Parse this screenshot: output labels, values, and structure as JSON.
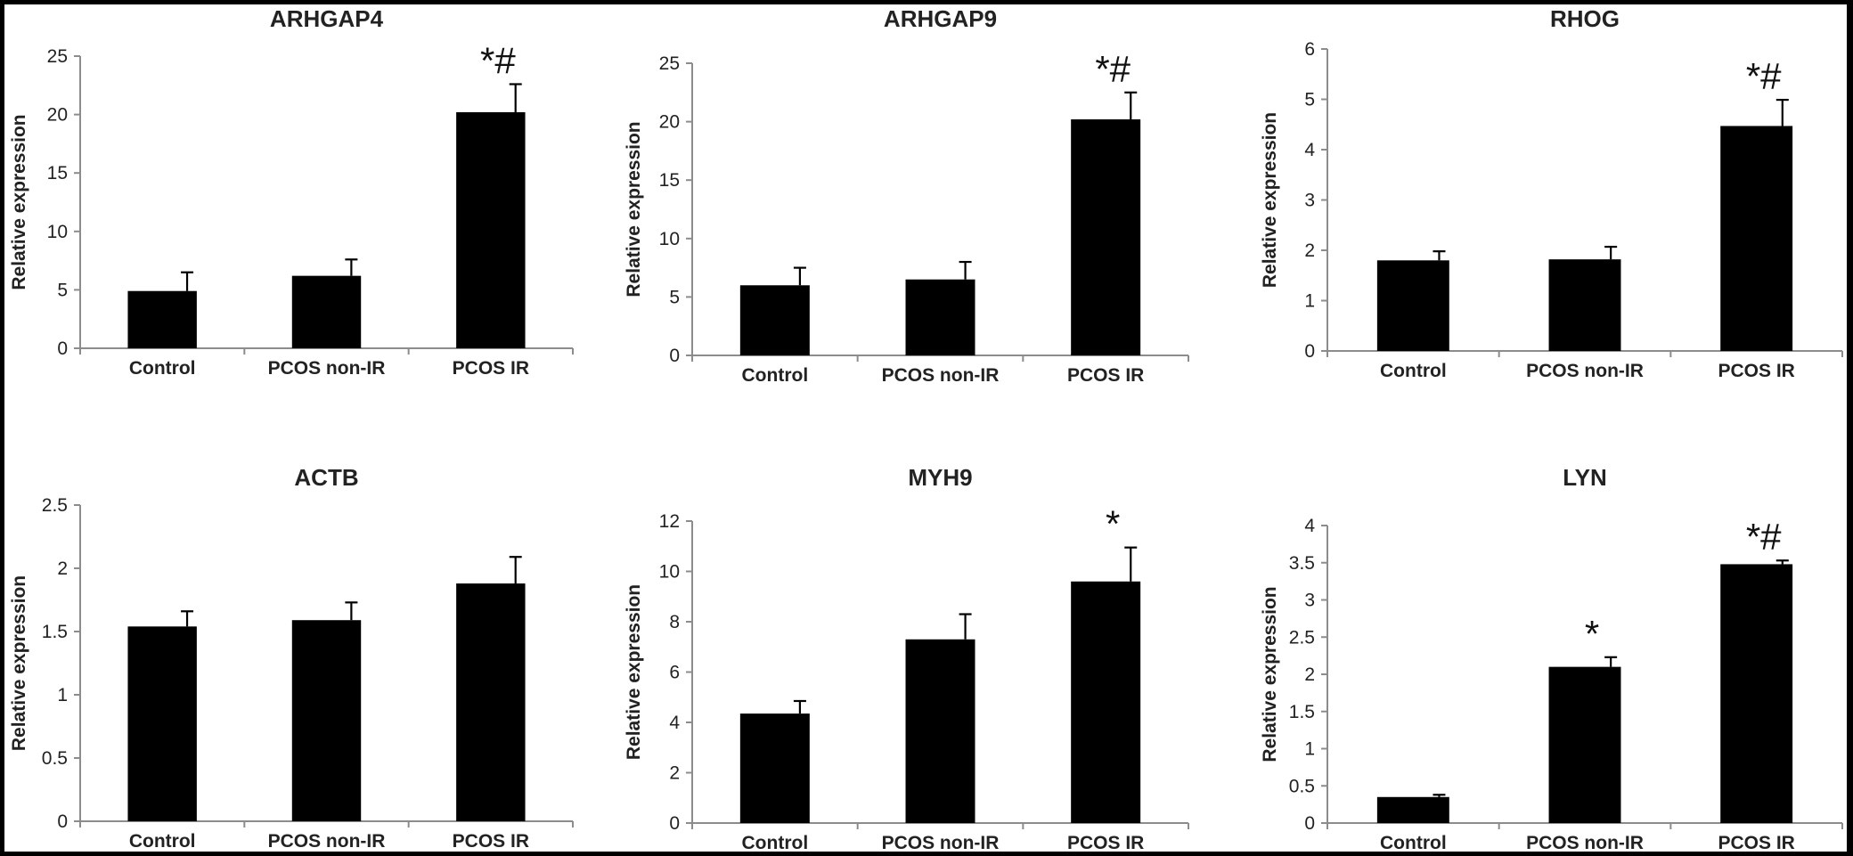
{
  "chart_data": [
    {
      "type": "bar",
      "title": "ARHGAP4",
      "ylabel": "Relative expression",
      "categories": [
        "Control",
        "PCOS non-IR",
        "PCOS IR"
      ],
      "values": [
        4.9,
        6.2,
        20.2
      ],
      "errors": [
        1.6,
        1.4,
        2.4
      ],
      "annotations": [
        "",
        "",
        "*#"
      ],
      "ylim": [
        0,
        25
      ],
      "yticks": [
        0,
        5,
        10,
        15,
        20,
        25
      ]
    },
    {
      "type": "bar",
      "title": "ARHGAP9",
      "ylabel": "Relative expression",
      "categories": [
        "Control",
        "PCOS non-IR",
        "PCOS IR"
      ],
      "values": [
        6.0,
        6.5,
        20.2
      ],
      "errors": [
        1.5,
        1.5,
        2.3
      ],
      "annotations": [
        "",
        "",
        "*#"
      ],
      "ylim": [
        0,
        25
      ],
      "yticks": [
        0,
        5,
        10,
        15,
        20,
        25
      ]
    },
    {
      "type": "bar",
      "title": "RHOG",
      "ylabel": "Relative expression",
      "categories": [
        "Control",
        "PCOS non-IR",
        "PCOS IR"
      ],
      "values": [
        1.8,
        1.82,
        4.47
      ],
      "errors": [
        0.18,
        0.25,
        0.52
      ],
      "annotations": [
        "",
        "",
        "*#"
      ],
      "ylim": [
        0,
        6
      ],
      "yticks": [
        0,
        1,
        2,
        3,
        4,
        5,
        6
      ]
    },
    {
      "type": "bar",
      "title": "ACTB",
      "ylabel": "Relative expression",
      "categories": [
        "Control",
        "PCOS non-IR",
        "PCOS IR"
      ],
      "values": [
        1.54,
        1.59,
        1.88
      ],
      "errors": [
        0.12,
        0.14,
        0.21
      ],
      "annotations": [
        "",
        "",
        ""
      ],
      "ylim": [
        0,
        2.5
      ],
      "yticks": [
        "0",
        "0.5",
        "1",
        "1.5",
        "2",
        "2.5"
      ]
    },
    {
      "type": "bar",
      "title": "MYH9",
      "ylabel": "Relative expression",
      "categories": [
        "Control",
        "PCOS non-IR",
        "PCOS IR"
      ],
      "values": [
        4.35,
        7.3,
        9.6
      ],
      "errors": [
        0.5,
        1.0,
        1.35
      ],
      "annotations": [
        "",
        "",
        "*"
      ],
      "ylim": [
        0,
        12
      ],
      "yticks": [
        0,
        2,
        4,
        6,
        8,
        10,
        12
      ]
    },
    {
      "type": "bar",
      "title": "LYN",
      "ylabel": "Relative expression",
      "categories": [
        "Control",
        "PCOS non-IR",
        "PCOS IR"
      ],
      "values": [
        0.35,
        2.1,
        3.48
      ],
      "errors": [
        0.03,
        0.13,
        0.05
      ],
      "annotations": [
        "",
        "*",
        "*#"
      ],
      "ylim": [
        0,
        4
      ],
      "yticks": [
        "0",
        "0.5",
        "1",
        "1.5",
        "2",
        "2.5",
        "3",
        "3.5",
        "4"
      ]
    }
  ],
  "colors": {
    "bar": "#000000",
    "axis": "#8c8c8c",
    "text": "#222222",
    "background": "#ffffff",
    "frame": "#000000"
  }
}
